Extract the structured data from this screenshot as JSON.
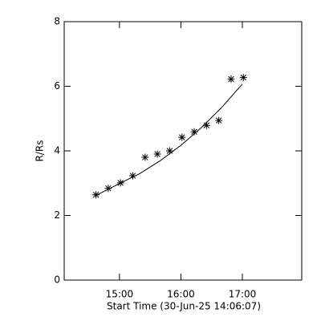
{
  "chart_data": {
    "type": "scatter",
    "ylabel": "R/Rs",
    "xlabel": "Start Time (30-Jun-25 14:06:07)",
    "xlim": [
      "14:06",
      "17:58"
    ],
    "xticks": [
      "15:00",
      "16:00",
      "17:00"
    ],
    "ylim": [
      0,
      8
    ],
    "yticks": [
      0,
      2,
      4,
      6,
      8
    ],
    "series": [
      {
        "marker": "asterisk",
        "color": "#000000",
        "x": [
          "14:37",
          "14:49",
          "15:01",
          "15:13",
          "15:25",
          "15:37",
          "15:49",
          "16:01",
          "16:13",
          "16:25",
          "16:37",
          "16:49",
          "17:01"
        ],
        "values": [
          2.64,
          2.84,
          3.01,
          3.23,
          3.8,
          3.9,
          4.0,
          4.42,
          4.59,
          4.79,
          4.94,
          6.22,
          6.27
        ]
      },
      {
        "marker": "line",
        "color": "#000000",
        "x": [
          "14:37",
          "15:00",
          "15:20",
          "15:40",
          "16:00",
          "16:20",
          "16:40",
          "17:00"
        ],
        "values": [
          2.62,
          2.99,
          3.3,
          3.7,
          4.17,
          4.72,
          5.35,
          6.07
        ]
      }
    ]
  }
}
